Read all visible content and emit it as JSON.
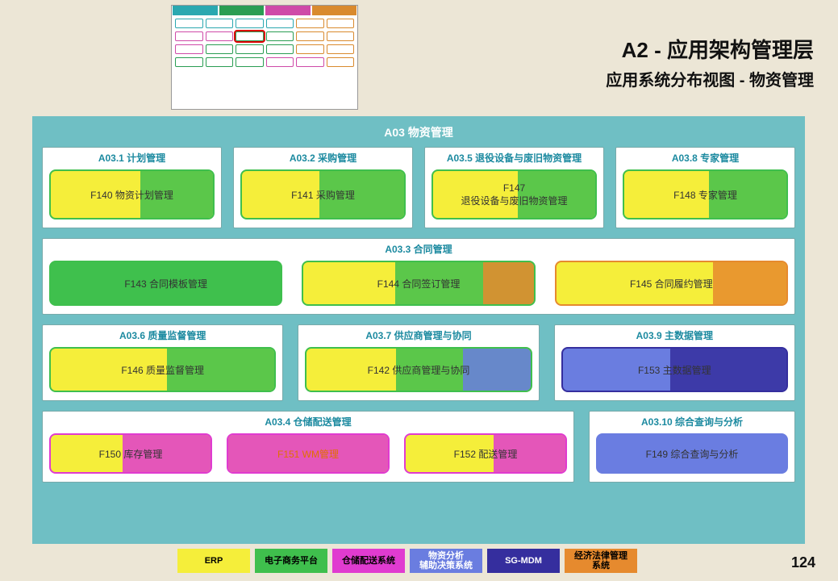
{
  "page": {
    "title_line1": "A2 - 应用架构管理层",
    "title_line2": "应用系统分布视图 - 物资管理",
    "page_number": "124",
    "background_color": "#ece6d6"
  },
  "main": {
    "title": "A03 物资管理",
    "bg_color": "#6fbfc4",
    "title_color": "#ffffff"
  },
  "colors": {
    "erp": "#f5ee3a",
    "ecommerce": "#3fbf4d",
    "wms": "#e03bd0",
    "analysis": "#6a7de0",
    "sgmdm": "#352e9e",
    "law": "#e68a2e",
    "section_border": "#7aa8aa",
    "section_title": "#1c8aa0"
  },
  "sections": {
    "r1c1": {
      "title": "A03.1 计划管理",
      "module": {
        "label": "F140 物资计划管理",
        "base": "erp",
        "overlay": "ecommerce",
        "overlay_from": 55
      }
    },
    "r1c2": {
      "title": "A03.2 采购管理",
      "module": {
        "label": "F141 采购管理",
        "base": "erp",
        "overlay": "ecommerce",
        "overlay_from": 48
      }
    },
    "r1c3": {
      "title": "A03.5 退役设备与废旧物资管理",
      "module": {
        "label": "F147\n退役设备与废旧物资管理",
        "base": "erp",
        "overlay": "ecommerce",
        "overlay_from": 52
      }
    },
    "r1c4": {
      "title": "A03.8 专家管理",
      "module": {
        "label": "F148 专家管理",
        "base": "erp",
        "overlay": "ecommerce",
        "overlay_from": 52
      }
    },
    "r2": {
      "title": "A03.3 合同管理",
      "m1": {
        "label": "F143 合同模板管理",
        "base": "ecommerce",
        "overlay": "ecommerce",
        "overlay_from": 0
      },
      "m2": {
        "label": "F144 合同签订管理",
        "base": "erp",
        "overlay": "ecommerce",
        "overlay_from": 40,
        "overlay2": "law",
        "overlay2_from": 78
      },
      "m3": {
        "label": "F145 合同履约管理",
        "base": "erp",
        "overlay": "law",
        "overlay_from": 68
      }
    },
    "r3c1": {
      "title": "A03.6 质量监督管理",
      "module": {
        "label": "F146 质量监督管理",
        "base": "erp",
        "overlay": "ecommerce",
        "overlay_from": 52
      }
    },
    "r3c2": {
      "title": "A03.7 供应商管理与协同",
      "module": {
        "label": "F142 供应商管理与协同",
        "base": "erp",
        "overlay": "ecommerce",
        "overlay_from": 40,
        "overlay2": "analysis",
        "overlay2_from": 70
      }
    },
    "r3c3": {
      "title": "A03.9 主数据管理",
      "module": {
        "label": "F153 主数据管理",
        "base": "analysis",
        "overlay": "sgmdm",
        "overlay_from": 48
      }
    },
    "r4l": {
      "title": "A03.4 仓储配送管理",
      "m1": {
        "label": "F150 库存管理",
        "base": "erp",
        "overlay": "wms",
        "overlay_from": 45
      },
      "m2": {
        "label": "F151 WM管理",
        "base": "erp",
        "overlay": "wms",
        "overlay_from": 0,
        "text_color": "#e07000"
      },
      "m3": {
        "label": "F152 配送管理",
        "base": "erp",
        "overlay": "wms",
        "overlay_from": 55
      }
    },
    "r4r": {
      "title": "A03.10 综合查询与分析",
      "module": {
        "label": "F149 综合查询与分析",
        "base": "analysis",
        "overlay": "analysis",
        "overlay_from": 0
      }
    }
  },
  "legend": [
    {
      "label": "ERP",
      "color_key": "erp",
      "text": "#000"
    },
    {
      "label": "电子商务平台",
      "color_key": "ecommerce",
      "text": "#000"
    },
    {
      "label": "仓储配送系统",
      "color_key": "wms",
      "text": "#000"
    },
    {
      "label": "物资分析\n辅助决策系统",
      "color_key": "analysis",
      "text": "#fff"
    },
    {
      "label": "SG-MDM",
      "color_key": "sgmdm",
      "text": "#fff"
    },
    {
      "label": "经济法律管理\n系统",
      "color_key": "law",
      "text": "#000"
    }
  ],
  "thumbnail": {
    "tabs": [
      "#2aa8b0",
      "#2a9d53",
      "#cf4aa8",
      "#d98a2e"
    ],
    "rows": [
      [
        "#2aa8b0",
        "#2aa8b0",
        "#2aa8b0",
        "#2aa8b0",
        "#d98a2e",
        "#d98a2e"
      ],
      [
        "#cf4aa8",
        "#cf4aa8",
        "#2a9d53",
        "#2a9d53",
        "#d98a2e",
        "#d98a2e"
      ],
      [
        "#cf4aa8",
        "#2a9d53",
        "#2a9d53",
        "#2a9d53",
        "#d98a2e",
        "#d98a2e"
      ],
      [
        "#2a9d53",
        "#2a9d53",
        "#2a9d53",
        "#cf4aa8",
        "#cf4aa8",
        "#d98a2e"
      ]
    ],
    "highlight": {
      "row": 1,
      "col": 2
    }
  }
}
